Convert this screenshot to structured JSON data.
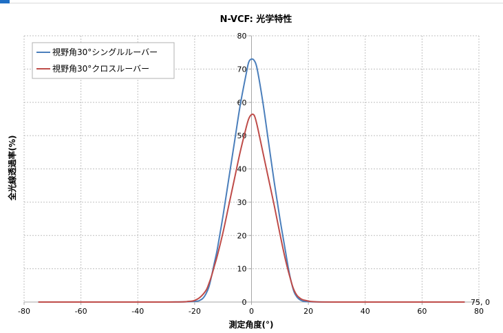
{
  "colors": {
    "series_blue": "#4a7ebb",
    "series_red": "#be4b48",
    "top_accent": "#1f6fc5",
    "gridline": "#bfbfbf"
  },
  "chart_data": {
    "type": "line",
    "title": "N-VCF: 光学特性",
    "xlabel": "測定角度(°)",
    "ylabel": "全光線透過率(%)",
    "xlim": [
      -80,
      80
    ],
    "ylim": [
      0,
      80
    ],
    "xticks": [
      -80,
      -60,
      -40,
      -20,
      0,
      20,
      40,
      60,
      80
    ],
    "yticks": [
      0,
      10,
      20,
      30,
      40,
      50,
      60,
      70,
      80
    ],
    "grid": true,
    "legend_position": "top-left",
    "annotation": "75, 0",
    "series": [
      {
        "name": "視野角30°シングルルーバー",
        "color": "#4a7ebb",
        "x": [
          -75,
          -30,
          -20,
          -18,
          -17,
          -16,
          -15,
          -14,
          -13,
          -12,
          -10,
          -8,
          -6,
          -4,
          -2,
          -1,
          0,
          1,
          2,
          4,
          6,
          8,
          10,
          12,
          13,
          14,
          15,
          16,
          17,
          18,
          20,
          30,
          75
        ],
        "y": [
          0,
          0,
          0.2,
          0.6,
          1.2,
          2.5,
          4.5,
          8,
          12,
          16,
          26,
          37,
          48,
          59,
          68,
          72,
          73,
          72.5,
          70,
          60,
          48,
          36,
          25,
          15,
          10,
          6,
          3,
          1.5,
          0.7,
          0.3,
          0.1,
          0,
          0
        ]
      },
      {
        "name": "視野角30°クロスルーバー",
        "color": "#be4b48",
        "x": [
          -75,
          -30,
          -22,
          -20,
          -18,
          -16,
          -15,
          -14,
          -13,
          -12,
          -10,
          -8,
          -6,
          -4,
          -2,
          -1,
          0,
          1,
          2,
          4,
          6,
          8,
          10,
          12,
          14,
          15,
          16,
          17,
          18,
          20,
          22,
          30,
          75
        ],
        "y": [
          0,
          0,
          0.2,
          0.5,
          1.5,
          3.5,
          5.5,
          8,
          11,
          14,
          21,
          29,
          37,
          45,
          52,
          55,
          56.3,
          56,
          53,
          45,
          37,
          29,
          20.5,
          12.5,
          6,
          3.5,
          2,
          1.2,
          0.7,
          0.3,
          0.1,
          0,
          0
        ]
      }
    ]
  }
}
